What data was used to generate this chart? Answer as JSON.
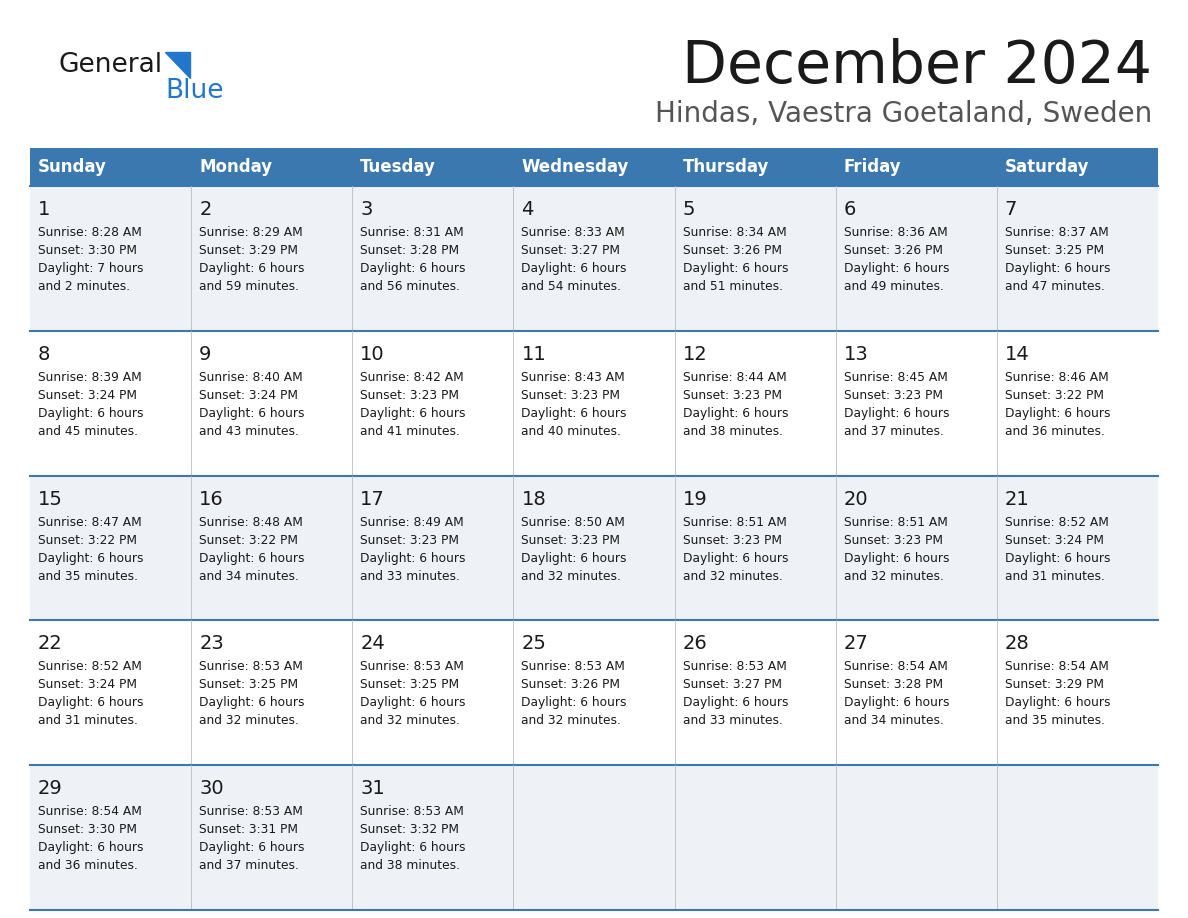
{
  "title": "December 2024",
  "subtitle": "Hindas, Vaestra Goetaland, Sweden",
  "header_color": "#3b78b0",
  "header_text_color": "#ffffff",
  "cell_bg_odd": "#eef2f7",
  "cell_bg_even": "#ffffff",
  "text_color": "#222222",
  "border_color": "#3b78b0",
  "days_of_week": [
    "Sunday",
    "Monday",
    "Tuesday",
    "Wednesday",
    "Thursday",
    "Friday",
    "Saturday"
  ],
  "weeks": [
    [
      {
        "day": 1,
        "sunrise": "8:28 AM",
        "sunset": "3:30 PM",
        "daylight_h": "7 hours",
        "daylight_m": "and 2 minutes."
      },
      {
        "day": 2,
        "sunrise": "8:29 AM",
        "sunset": "3:29 PM",
        "daylight_h": "6 hours",
        "daylight_m": "and 59 minutes."
      },
      {
        "day": 3,
        "sunrise": "8:31 AM",
        "sunset": "3:28 PM",
        "daylight_h": "6 hours",
        "daylight_m": "and 56 minutes."
      },
      {
        "day": 4,
        "sunrise": "8:33 AM",
        "sunset": "3:27 PM",
        "daylight_h": "6 hours",
        "daylight_m": "and 54 minutes."
      },
      {
        "day": 5,
        "sunrise": "8:34 AM",
        "sunset": "3:26 PM",
        "daylight_h": "6 hours",
        "daylight_m": "and 51 minutes."
      },
      {
        "day": 6,
        "sunrise": "8:36 AM",
        "sunset": "3:26 PM",
        "daylight_h": "6 hours",
        "daylight_m": "and 49 minutes."
      },
      {
        "day": 7,
        "sunrise": "8:37 AM",
        "sunset": "3:25 PM",
        "daylight_h": "6 hours",
        "daylight_m": "and 47 minutes."
      }
    ],
    [
      {
        "day": 8,
        "sunrise": "8:39 AM",
        "sunset": "3:24 PM",
        "daylight_h": "6 hours",
        "daylight_m": "and 45 minutes."
      },
      {
        "day": 9,
        "sunrise": "8:40 AM",
        "sunset": "3:24 PM",
        "daylight_h": "6 hours",
        "daylight_m": "and 43 minutes."
      },
      {
        "day": 10,
        "sunrise": "8:42 AM",
        "sunset": "3:23 PM",
        "daylight_h": "6 hours",
        "daylight_m": "and 41 minutes."
      },
      {
        "day": 11,
        "sunrise": "8:43 AM",
        "sunset": "3:23 PM",
        "daylight_h": "6 hours",
        "daylight_m": "and 40 minutes."
      },
      {
        "day": 12,
        "sunrise": "8:44 AM",
        "sunset": "3:23 PM",
        "daylight_h": "6 hours",
        "daylight_m": "and 38 minutes."
      },
      {
        "day": 13,
        "sunrise": "8:45 AM",
        "sunset": "3:23 PM",
        "daylight_h": "6 hours",
        "daylight_m": "and 37 minutes."
      },
      {
        "day": 14,
        "sunrise": "8:46 AM",
        "sunset": "3:22 PM",
        "daylight_h": "6 hours",
        "daylight_m": "and 36 minutes."
      }
    ],
    [
      {
        "day": 15,
        "sunrise": "8:47 AM",
        "sunset": "3:22 PM",
        "daylight_h": "6 hours",
        "daylight_m": "and 35 minutes."
      },
      {
        "day": 16,
        "sunrise": "8:48 AM",
        "sunset": "3:22 PM",
        "daylight_h": "6 hours",
        "daylight_m": "and 34 minutes."
      },
      {
        "day": 17,
        "sunrise": "8:49 AM",
        "sunset": "3:23 PM",
        "daylight_h": "6 hours",
        "daylight_m": "and 33 minutes."
      },
      {
        "day": 18,
        "sunrise": "8:50 AM",
        "sunset": "3:23 PM",
        "daylight_h": "6 hours",
        "daylight_m": "and 32 minutes."
      },
      {
        "day": 19,
        "sunrise": "8:51 AM",
        "sunset": "3:23 PM",
        "daylight_h": "6 hours",
        "daylight_m": "and 32 minutes."
      },
      {
        "day": 20,
        "sunrise": "8:51 AM",
        "sunset": "3:23 PM",
        "daylight_h": "6 hours",
        "daylight_m": "and 32 minutes."
      },
      {
        "day": 21,
        "sunrise": "8:52 AM",
        "sunset": "3:24 PM",
        "daylight_h": "6 hours",
        "daylight_m": "and 31 minutes."
      }
    ],
    [
      {
        "day": 22,
        "sunrise": "8:52 AM",
        "sunset": "3:24 PM",
        "daylight_h": "6 hours",
        "daylight_m": "and 31 minutes."
      },
      {
        "day": 23,
        "sunrise": "8:53 AM",
        "sunset": "3:25 PM",
        "daylight_h": "6 hours",
        "daylight_m": "and 32 minutes."
      },
      {
        "day": 24,
        "sunrise": "8:53 AM",
        "sunset": "3:25 PM",
        "daylight_h": "6 hours",
        "daylight_m": "and 32 minutes."
      },
      {
        "day": 25,
        "sunrise": "8:53 AM",
        "sunset": "3:26 PM",
        "daylight_h": "6 hours",
        "daylight_m": "and 32 minutes."
      },
      {
        "day": 26,
        "sunrise": "8:53 AM",
        "sunset": "3:27 PM",
        "daylight_h": "6 hours",
        "daylight_m": "and 33 minutes."
      },
      {
        "day": 27,
        "sunrise": "8:54 AM",
        "sunset": "3:28 PM",
        "daylight_h": "6 hours",
        "daylight_m": "and 34 minutes."
      },
      {
        "day": 28,
        "sunrise": "8:54 AM",
        "sunset": "3:29 PM",
        "daylight_h": "6 hours",
        "daylight_m": "and 35 minutes."
      }
    ],
    [
      {
        "day": 29,
        "sunrise": "8:54 AM",
        "sunset": "3:30 PM",
        "daylight_h": "6 hours",
        "daylight_m": "and 36 minutes."
      },
      {
        "day": 30,
        "sunrise": "8:53 AM",
        "sunset": "3:31 PM",
        "daylight_h": "6 hours",
        "daylight_m": "and 37 minutes."
      },
      {
        "day": 31,
        "sunrise": "8:53 AM",
        "sunset": "3:32 PM",
        "daylight_h": "6 hours",
        "daylight_m": "and 38 minutes."
      },
      null,
      null,
      null,
      null
    ]
  ],
  "logo_general_color": "#1a1a1a",
  "logo_blue_color": "#2277cc",
  "figsize": [
    11.88,
    9.18
  ],
  "dpi": 100
}
